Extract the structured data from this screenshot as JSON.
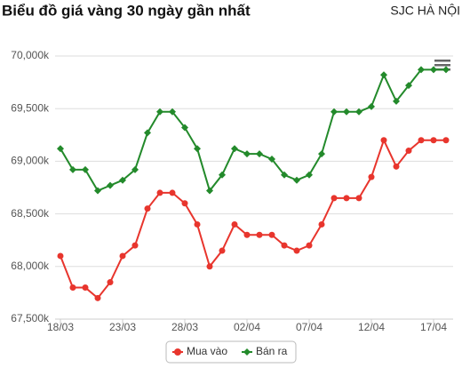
{
  "header": {
    "title": "Biểu đồ giá vàng 30 ngày gần nhất",
    "source": "SJC HÀ NỘI"
  },
  "chart_data": {
    "type": "line",
    "categories": [
      "18/03",
      null,
      null,
      null,
      null,
      "23/03",
      null,
      null,
      null,
      null,
      "28/03",
      null,
      null,
      null,
      null,
      "02/04",
      null,
      null,
      null,
      null,
      "07/04",
      null,
      null,
      null,
      null,
      "12/04",
      null,
      null,
      null,
      null,
      "17/04",
      null
    ],
    "series": [
      {
        "name": "Mua vào",
        "color": "#e8352d",
        "values": [
          68100,
          67800,
          67800,
          67700,
          67850,
          68100,
          68200,
          68550,
          68700,
          68700,
          68600,
          68400,
          68000,
          68150,
          68400,
          68300,
          68300,
          68300,
          68200,
          68150,
          68200,
          68400,
          68650,
          68650,
          68650,
          68850,
          69200,
          68950,
          69100,
          69200,
          69200,
          69200
        ]
      },
      {
        "name": "Bán ra",
        "color": "#238a2b",
        "values": [
          69120,
          68920,
          68920,
          68720,
          68770,
          68820,
          68920,
          69270,
          69470,
          69470,
          69320,
          69120,
          68720,
          68870,
          69120,
          69070,
          69070,
          69020,
          68870,
          68820,
          68870,
          69070,
          69470,
          69470,
          69470,
          69520,
          69820,
          69570,
          69720,
          69870,
          69870,
          69870
        ]
      }
    ],
    "ylim": [
      67500,
      70000
    ],
    "yticks": [
      {
        "value": 67500,
        "label": "67,500k"
      },
      {
        "value": 68000,
        "label": "68,000k"
      },
      {
        "value": 68500,
        "label": "68,500k"
      },
      {
        "value": 69000,
        "label": "69,000k"
      },
      {
        "value": 69500,
        "label": "69,500k"
      },
      {
        "value": 70000,
        "label": "70,000k"
      }
    ],
    "grid": true,
    "legend": "bottom"
  }
}
